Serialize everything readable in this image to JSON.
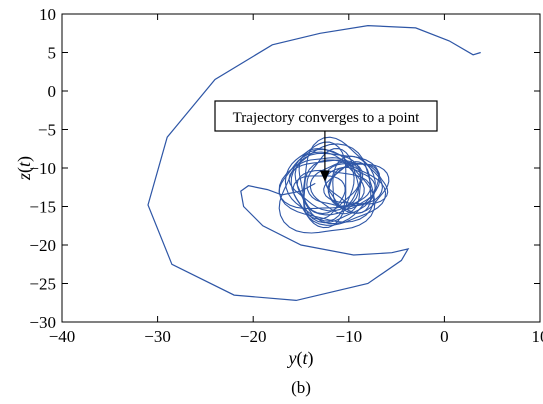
{
  "chart_data": {
    "type": "line",
    "xlabel": "y(t)",
    "ylabel": "z(t)",
    "xlim": [
      -40,
      10
    ],
    "ylim": [
      -30,
      10
    ],
    "xticks": [
      -40,
      -30,
      -20,
      -10,
      0,
      10
    ],
    "yticks": [
      10,
      5,
      0,
      -5,
      -10,
      -15,
      -20,
      -25,
      -30
    ],
    "grid": false,
    "series": [
      {
        "color": "#2e56a6",
        "x": [
          3.8,
          3.0,
          0.5,
          -3.0,
          -8.0,
          -13.0,
          -18.0,
          -24.0,
          -29.0,
          -31.0,
          -28.5,
          -22.0,
          -15.5,
          -8.0,
          -4.5,
          -3.8,
          -5.5,
          -9.5,
          -15.0,
          -19.0,
          -21.0,
          -21.3,
          -20.5,
          -18.5,
          -17.0
        ],
        "y": [
          5.0,
          4.7,
          6.5,
          8.2,
          8.5,
          7.5,
          6.0,
          1.5,
          -6.0,
          -14.8,
          -22.5,
          -26.5,
          -27.2,
          -25.0,
          -22.0,
          -20.5,
          -21.0,
          -21.3,
          -20.0,
          -17.5,
          -15.0,
          -13.0,
          -12.3,
          -12.8,
          -13.5
        ]
      }
    ],
    "annotations": [
      {
        "text": "Trajectory converges to a point",
        "x": -12.5,
        "y": -11.5
      }
    ],
    "caption": "(b)"
  }
}
